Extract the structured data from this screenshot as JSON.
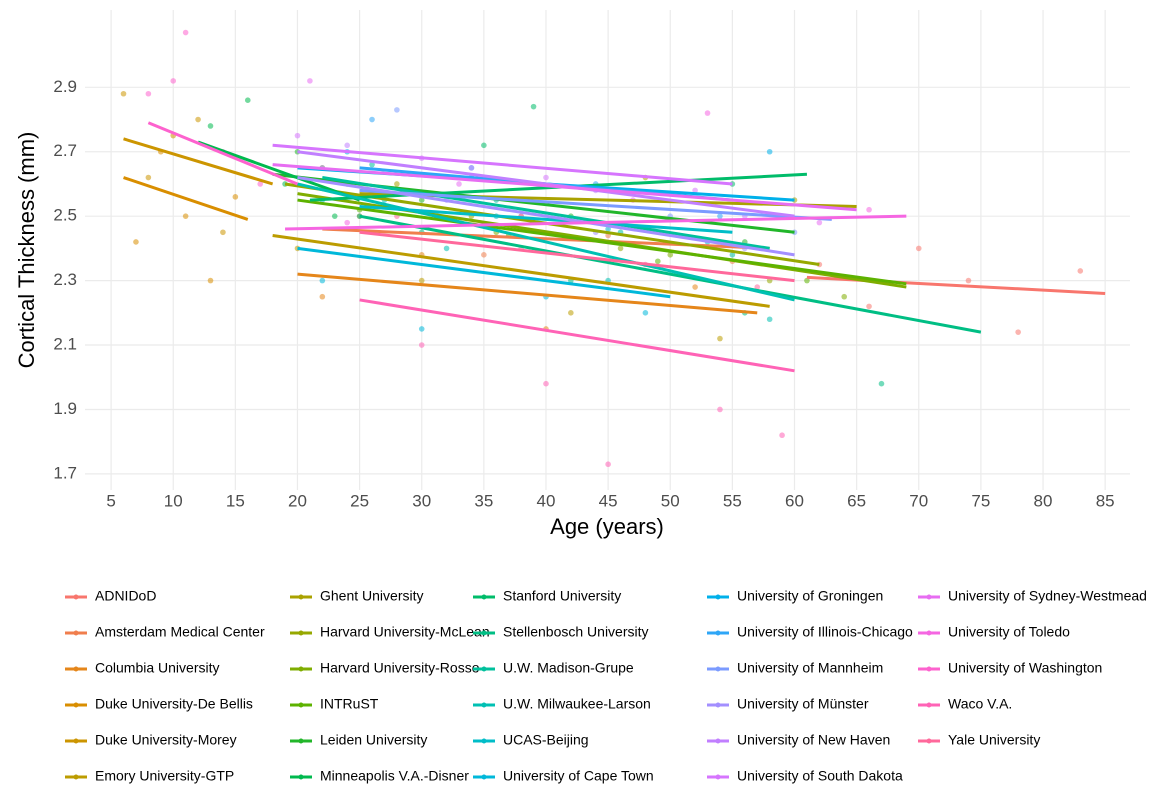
{
  "chart_data": {
    "type": "scatter",
    "x_label": "Age (years)",
    "y_label": "Cortical Thickness (mm)",
    "xlim": [
      2.9,
      87
    ],
    "ylim": [
      1.65,
      3.14
    ],
    "xticks": [
      5,
      10,
      15,
      20,
      25,
      30,
      35,
      40,
      45,
      50,
      55,
      60,
      65,
      70,
      75,
      80,
      85
    ],
    "yticks": [
      1.7,
      1.9,
      2.1,
      2.3,
      2.5,
      2.7,
      2.9
    ],
    "grid": true,
    "legend": "bottom",
    "series": [
      {
        "name": "ADNIDoD",
        "color": "#F8766D",
        "x": [
          61,
          85
        ],
        "values": [
          2.31,
          2.26
        ],
        "points_x": [
          62,
          66,
          70,
          74,
          78,
          83
        ],
        "points_y": [
          2.35,
          2.22,
          2.4,
          2.3,
          2.14,
          2.33
        ]
      },
      {
        "name": "Amsterdam Medical Center",
        "color": "#F07E4D",
        "x": [
          22,
          58
        ],
        "values": [
          2.46,
          2.4
        ],
        "points_x": [
          25,
          35,
          45,
          55
        ],
        "points_y": [
          2.5,
          2.38,
          2.44,
          2.36
        ]
      },
      {
        "name": "Columbia University",
        "color": "#E5861A",
        "x": [
          20,
          57
        ],
        "values": [
          2.32,
          2.2
        ],
        "points_x": [
          22,
          30,
          40,
          52
        ],
        "points_y": [
          2.25,
          2.38,
          2.15,
          2.28
        ]
      },
      {
        "name": "Duke University-De Bellis",
        "color": "#D98E00",
        "x": [
          6,
          16
        ],
        "values": [
          2.62,
          2.49
        ],
        "points_x": [
          7,
          9,
          11,
          13,
          15
        ],
        "points_y": [
          2.42,
          2.7,
          2.5,
          2.3,
          2.56
        ]
      },
      {
        "name": "Duke University-Morey",
        "color": "#CC9500",
        "x": [
          6,
          18
        ],
        "values": [
          2.74,
          2.6
        ],
        "points_x": [
          6,
          8,
          10,
          12,
          14
        ],
        "points_y": [
          2.88,
          2.62,
          2.75,
          2.8,
          2.45
        ]
      },
      {
        "name": "Emory University-GTP",
        "color": "#BC9C00",
        "x": [
          18,
          58
        ],
        "values": [
          2.44,
          2.22
        ],
        "points_x": [
          20,
          30,
          42,
          54
        ],
        "points_y": [
          2.4,
          2.3,
          2.2,
          2.12
        ]
      },
      {
        "name": "Ghent University",
        "color": "#AAA200",
        "x": [
          25,
          65
        ],
        "values": [
          2.57,
          2.53
        ],
        "points_x": [
          28,
          38,
          48,
          60
        ],
        "points_y": [
          2.6,
          2.5,
          2.62,
          2.55
        ]
      },
      {
        "name": "Harvard University-McLean",
        "color": "#96A800",
        "x": [
          19,
          62
        ],
        "values": [
          2.6,
          2.35
        ],
        "points_x": [
          22,
          34,
          46,
          58
        ],
        "points_y": [
          2.65,
          2.5,
          2.4,
          2.3
        ]
      },
      {
        "name": "Harvard University-Rosso",
        "color": "#7FAD00",
        "x": [
          20,
          69
        ],
        "values": [
          2.57,
          2.28
        ],
        "points_x": [
          24,
          36,
          50,
          64
        ],
        "points_y": [
          2.6,
          2.45,
          2.38,
          2.25
        ]
      },
      {
        "name": "INTRuST",
        "color": "#5DB200",
        "x": [
          20,
          69
        ],
        "values": [
          2.55,
          2.29
        ],
        "points_x": [
          25,
          37,
          49,
          61
        ],
        "points_y": [
          2.52,
          2.44,
          2.36,
          2.3
        ]
      },
      {
        "name": "Leiden University",
        "color": "#22B62A",
        "x": [
          18,
          60
        ],
        "values": [
          2.63,
          2.45
        ],
        "points_x": [
          20,
          30,
          42,
          56
        ],
        "points_y": [
          2.7,
          2.55,
          2.5,
          2.42
        ]
      },
      {
        "name": "Minneapolis V.A.-Disner",
        "color": "#00B94E",
        "x": [
          12,
          25
        ],
        "values": [
          2.73,
          2.55
        ],
        "points_x": [
          13,
          16,
          19,
          23
        ],
        "points_y": [
          2.78,
          2.86,
          2.6,
          2.5
        ]
      },
      {
        "name": "Stanford University",
        "color": "#00BC6A",
        "x": [
          21,
          61
        ],
        "values": [
          2.55,
          2.63
        ],
        "points_x": [
          25,
          35,
          39,
          55
        ],
        "points_y": [
          2.5,
          2.72,
          2.84,
          2.6
        ]
      },
      {
        "name": "Stellenbosch University",
        "color": "#00BE84",
        "x": [
          25,
          75
        ],
        "values": [
          2.5,
          2.14
        ],
        "points_x": [
          30,
          42,
          56,
          67
        ],
        "points_y": [
          2.45,
          2.3,
          2.2,
          1.98
        ]
      },
      {
        "name": "U.W. Madison-Grupe",
        "color": "#00C09C",
        "x": [
          22,
          58
        ],
        "values": [
          2.62,
          2.4
        ],
        "points_x": [
          26,
          36,
          46,
          55
        ],
        "points_y": [
          2.66,
          2.55,
          2.45,
          2.38
        ]
      },
      {
        "name": "U.W. Milwaukee-Larson",
        "color": "#00C0B3",
        "x": [
          20,
          60
        ],
        "values": [
          2.6,
          2.24
        ],
        "points_x": [
          22,
          32,
          45,
          58
        ],
        "points_y": [
          2.55,
          2.4,
          2.3,
          2.18
        ]
      },
      {
        "name": "UCAS-Beijing",
        "color": "#00BDC8",
        "x": [
          25,
          55
        ],
        "values": [
          2.53,
          2.45
        ],
        "points_x": [
          27,
          36,
          45,
          53
        ],
        "points_y": [
          2.55,
          2.5,
          2.46,
          2.42
        ]
      },
      {
        "name": "University of Cape Town",
        "color": "#00B8DA",
        "x": [
          20,
          50
        ],
        "values": [
          2.4,
          2.25
        ],
        "points_x": [
          22,
          30,
          40,
          48
        ],
        "points_y": [
          2.3,
          2.15,
          2.25,
          2.2
        ]
      },
      {
        "name": "University of Groningen",
        "color": "#00B0EA",
        "x": [
          20,
          60
        ],
        "values": [
          2.65,
          2.55
        ],
        "points_x": [
          24,
          34,
          46,
          58
        ],
        "points_y": [
          2.7,
          2.62,
          2.58,
          2.7
        ]
      },
      {
        "name": "University of Illinois-Chicago",
        "color": "#2EA6F7",
        "x": [
          25,
          55
        ],
        "values": [
          2.65,
          2.55
        ],
        "points_x": [
          26,
          34,
          44,
          54
        ],
        "points_y": [
          2.8,
          2.65,
          2.6,
          2.5
        ]
      },
      {
        "name": "University of Mannheim",
        "color": "#7B9BFF",
        "x": [
          25,
          63
        ],
        "values": [
          2.58,
          2.49
        ],
        "points_x": [
          28,
          38,
          50,
          60
        ],
        "points_y": [
          2.83,
          2.55,
          2.5,
          2.45
        ]
      },
      {
        "name": "University of Münster",
        "color": "#A38FFF",
        "x": [
          20,
          60
        ],
        "values": [
          2.62,
          2.38
        ],
        "points_x": [
          22,
          32,
          44,
          56
        ],
        "points_y": [
          2.65,
          2.55,
          2.45,
          2.4
        ]
      },
      {
        "name": "University of New Haven",
        "color": "#C17FFF",
        "x": [
          20,
          60
        ],
        "values": [
          2.7,
          2.5
        ],
        "points_x": [
          24,
          34,
          44,
          56
        ],
        "points_y": [
          2.72,
          2.65,
          2.58,
          2.5
        ]
      },
      {
        "name": "University of South Dakota",
        "color": "#D675FE",
        "x": [
          18,
          55
        ],
        "values": [
          2.72,
          2.6
        ],
        "points_x": [
          20,
          30,
          40,
          52
        ],
        "points_y": [
          2.75,
          2.68,
          2.62,
          2.58
        ]
      },
      {
        "name": "University of Sydney-Westmead",
        "color": "#E76DF2",
        "x": [
          18,
          65
        ],
        "values": [
          2.66,
          2.52
        ],
        "points_x": [
          21,
          33,
          47,
          62
        ],
        "points_y": [
          2.92,
          2.6,
          2.55,
          2.48
        ]
      },
      {
        "name": "University of Toledo",
        "color": "#F566E2",
        "x": [
          19,
          69
        ],
        "values": [
          2.46,
          2.5
        ],
        "points_x": [
          24,
          38,
          53,
          66
        ],
        "points_y": [
          2.48,
          2.5,
          2.82,
          2.52
        ]
      },
      {
        "name": "University of Washington",
        "color": "#FD62CE",
        "x": [
          8,
          20
        ],
        "values": [
          2.79,
          2.6
        ],
        "points_x": [
          8,
          10,
          11,
          14,
          17
        ],
        "points_y": [
          2.88,
          2.92,
          3.07,
          2.7,
          2.6
        ]
      },
      {
        "name": "Waco V.A.",
        "color": "#FF63B6",
        "x": [
          25,
          60
        ],
        "values": [
          2.24,
          2.02
        ],
        "points_x": [
          30,
          40,
          45,
          54,
          59
        ],
        "points_y": [
          2.1,
          1.98,
          1.73,
          1.9,
          1.82
        ]
      },
      {
        "name": "Yale University",
        "color": "#FF689B",
        "x": [
          25,
          60
        ],
        "values": [
          2.45,
          2.3
        ],
        "points_x": [
          28,
          38,
          48,
          57
        ],
        "points_y": [
          2.5,
          2.4,
          2.35,
          2.28
        ]
      }
    ]
  }
}
